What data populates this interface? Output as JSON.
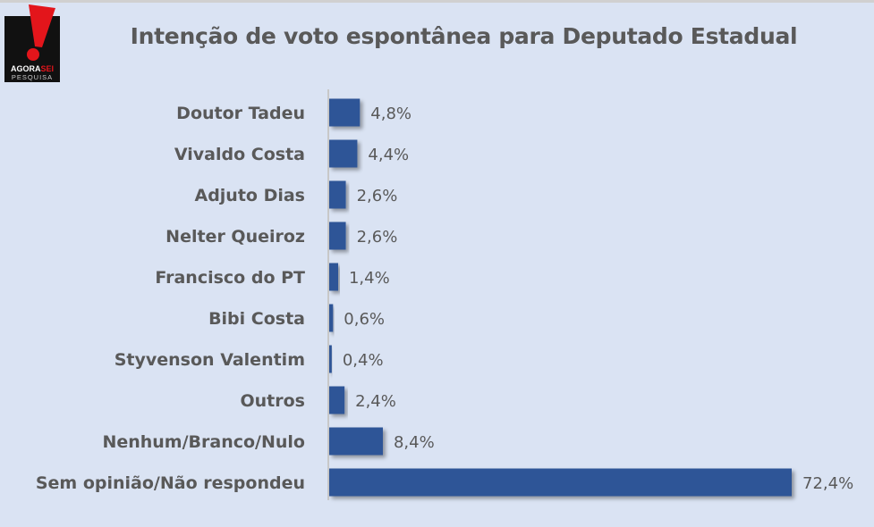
{
  "logo": {
    "text_top": "AGORASEI",
    "text_bottom": "PESQUISA"
  },
  "chart_data": {
    "type": "bar",
    "orientation": "horizontal",
    "title": "Intenção de voto espontânea para Deputado Estadual",
    "categories": [
      "Doutor Tadeu",
      "Vivaldo Costa",
      "Adjuto Dias",
      "Nelter Queiroz",
      "Francisco do PT",
      "Bibi Costa",
      "Styvenson Valentim",
      "Outros",
      "Nenhum/Branco/Nulo",
      "Sem opinião/Não respondeu"
    ],
    "values": [
      4.8,
      4.4,
      2.6,
      2.6,
      1.4,
      0.6,
      0.4,
      2.4,
      8.4,
      72.4
    ],
    "labels": [
      "4,8%",
      "4,4%",
      "2,6%",
      "2,6%",
      "1,4%",
      "0,6%",
      "0,4%",
      "2,4%",
      "8,4%",
      "72,4%"
    ],
    "xlim": [
      0,
      72.4
    ],
    "grid": false,
    "bar_color": "#2f5597"
  }
}
